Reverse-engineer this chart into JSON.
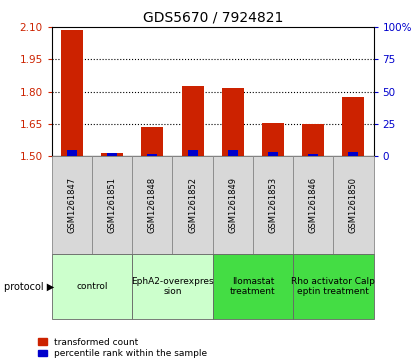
{
  "title": "GDS5670 / 7924821",
  "samples": [
    "GSM1261847",
    "GSM1261851",
    "GSM1261848",
    "GSM1261852",
    "GSM1261849",
    "GSM1261853",
    "GSM1261846",
    "GSM1261850"
  ],
  "red_values": [
    2.085,
    1.515,
    1.635,
    1.825,
    1.815,
    1.655,
    1.648,
    1.775
  ],
  "blue_values": [
    5.0,
    2.5,
    2.0,
    5.0,
    5.0,
    3.5,
    2.0,
    3.5
  ],
  "red_baseline": 1.5,
  "blue_baseline": 0,
  "ylim_left": [
    1.5,
    2.1
  ],
  "ylim_right": [
    0,
    100
  ],
  "yticks_left": [
    1.5,
    1.65,
    1.8,
    1.95,
    2.1
  ],
  "yticks_right": [
    0,
    25,
    50,
    75,
    100
  ],
  "ytick_labels_right": [
    "0",
    "25",
    "50",
    "75",
    "100%"
  ],
  "red_color": "#cc2200",
  "blue_color": "#0000cc",
  "protocols": [
    {
      "label": "control",
      "start": 0,
      "end": 2,
      "color": "#ccffcc"
    },
    {
      "label": "EphA2-overexpres\nsion",
      "start": 2,
      "end": 4,
      "color": "#ccffcc"
    },
    {
      "label": "Ilomastat\ntreatment",
      "start": 4,
      "end": 6,
      "color": "#44dd44"
    },
    {
      "label": "Rho activator Calp\neptin treatment",
      "start": 6,
      "end": 8,
      "color": "#44dd44"
    }
  ],
  "legend_red": "transformed count",
  "legend_blue": "percentile rank within the sample",
  "plot_bg": "#ffffff"
}
